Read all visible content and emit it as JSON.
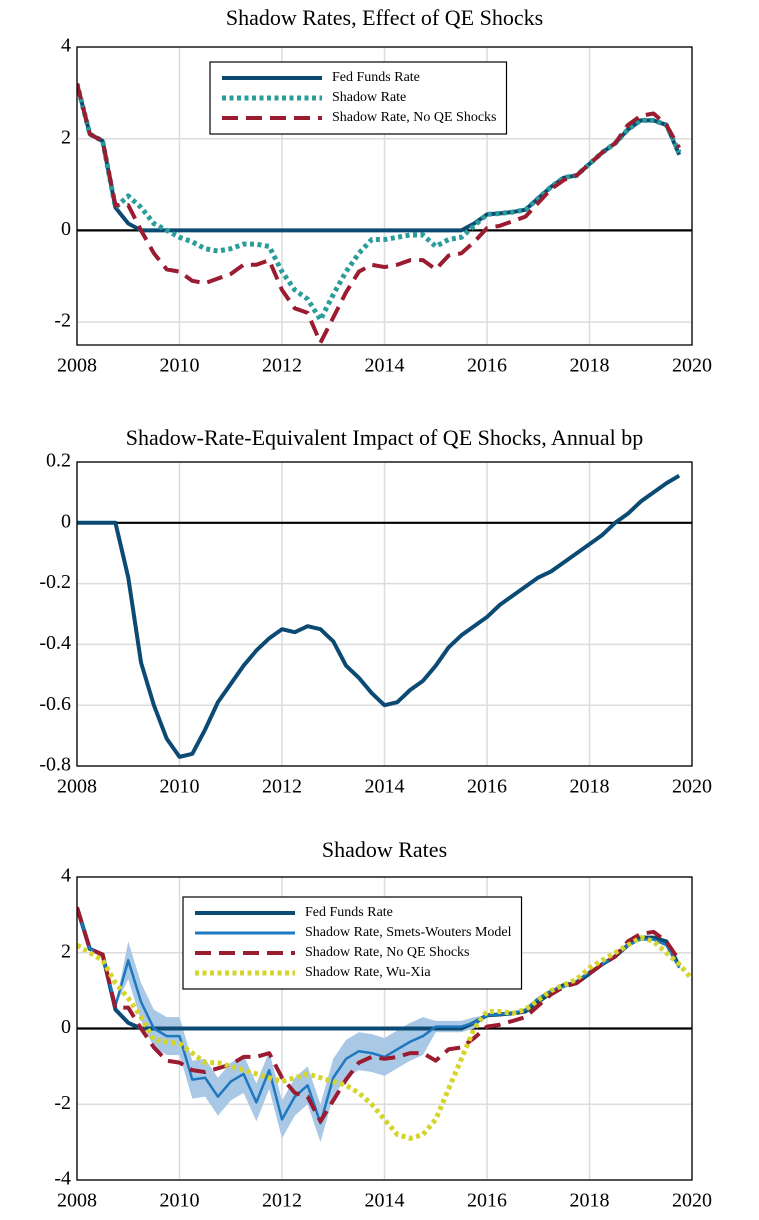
{
  "chart_data": [
    {
      "type": "line",
      "title": "Shadow Rates, Effect of QE Shocks",
      "x": [
        2008,
        2008.25,
        2008.5,
        2008.75,
        2009,
        2009.25,
        2009.5,
        2009.75,
        2010,
        2010.25,
        2010.5,
        2010.75,
        2011,
        2011.25,
        2011.5,
        2011.75,
        2012,
        2012.25,
        2012.5,
        2012.75,
        2013,
        2013.25,
        2013.5,
        2013.75,
        2014,
        2014.25,
        2014.5,
        2014.75,
        2015,
        2015.25,
        2015.5,
        2015.75,
        2016,
        2016.25,
        2016.5,
        2016.75,
        2017,
        2017.25,
        2017.5,
        2017.75,
        2018,
        2018.25,
        2018.5,
        2018.75,
        2019,
        2019.25,
        2019.5,
        2019.75
      ],
      "series": [
        {
          "name": "Fed Funds Rate",
          "color": "#0b4a73",
          "style": "solid",
          "values": [
            3.2,
            2.1,
            1.95,
            0.5,
            0.15,
            0,
            0,
            0,
            0,
            0,
            0,
            0,
            0,
            0,
            0,
            0,
            0,
            0,
            0,
            0,
            0,
            0,
            0,
            0,
            0,
            0,
            0,
            0,
            0,
            0,
            0,
            0.15,
            0.35,
            0.37,
            0.4,
            0.45,
            0.7,
            0.95,
            1.15,
            1.2,
            1.45,
            1.7,
            1.9,
            2.2,
            2.4,
            2.4,
            2.3,
            1.65
          ]
        },
        {
          "name": "Shadow Rate",
          "color": "#2a9d9a",
          "style": "dotted",
          "values": [
            3.2,
            2.1,
            1.95,
            0.5,
            0.75,
            0.5,
            0.15,
            0,
            -0.15,
            -0.25,
            -0.4,
            -0.45,
            -0.4,
            -0.3,
            -0.3,
            -0.35,
            -0.9,
            -1.3,
            -1.5,
            -1.95,
            -1.4,
            -0.9,
            -0.5,
            -0.2,
            -0.2,
            -0.15,
            -0.1,
            -0.1,
            -0.35,
            -0.2,
            -0.15,
            0.1,
            0.35,
            0.37,
            0.4,
            0.45,
            0.7,
            0.95,
            1.15,
            1.2,
            1.45,
            1.7,
            1.9,
            2.2,
            2.4,
            2.4,
            2.3,
            1.7
          ]
        },
        {
          "name": "Shadow Rate, No QE Shocks",
          "color": "#9b1b30",
          "style": "dashed",
          "values": [
            3.2,
            2.1,
            1.95,
            0.55,
            0.55,
            0,
            -0.5,
            -0.85,
            -0.9,
            -1.1,
            -1.15,
            -1.05,
            -0.95,
            -0.75,
            -0.75,
            -0.65,
            -1.3,
            -1.7,
            -1.8,
            -2.45,
            -1.9,
            -1.35,
            -0.9,
            -0.75,
            -0.8,
            -0.75,
            -0.65,
            -0.65,
            -0.85,
            -0.55,
            -0.5,
            -0.25,
            0.05,
            0.1,
            0.2,
            0.3,
            0.6,
            0.9,
            1.1,
            1.2,
            1.45,
            1.7,
            1.9,
            2.3,
            2.5,
            2.55,
            2.3,
            1.8
          ]
        }
      ],
      "xlim": [
        2008,
        2020
      ],
      "xticks": [
        2008,
        2010,
        2012,
        2014,
        2016,
        2018,
        2020
      ],
      "ylim": [
        -2.5,
        4
      ],
      "yticks": [
        -2,
        0,
        2,
        4
      ],
      "grid": true,
      "reference_line": 0,
      "legend": "upper center"
    },
    {
      "type": "line",
      "title": "Shadow-Rate-Equivalent Impact of QE Shocks, Annual bp",
      "x": [
        2008,
        2008.25,
        2008.5,
        2008.75,
        2009,
        2009.25,
        2009.5,
        2009.75,
        2010,
        2010.25,
        2010.5,
        2010.75,
        2011,
        2011.25,
        2011.5,
        2011.75,
        2012,
        2012.25,
        2012.5,
        2012.75,
        2013,
        2013.25,
        2013.5,
        2013.75,
        2014,
        2014.25,
        2014.5,
        2014.75,
        2015,
        2015.25,
        2015.5,
        2015.75,
        2016,
        2016.25,
        2016.5,
        2016.75,
        2017,
        2017.25,
        2017.5,
        2017.75,
        2018,
        2018.25,
        2018.5,
        2018.75,
        2019,
        2019.25,
        2019.5,
        2019.75
      ],
      "color": "#0b4a73",
      "values": [
        0,
        0,
        0,
        0,
        -0.18,
        -0.46,
        -0.6,
        -0.71,
        -0.77,
        -0.76,
        -0.68,
        -0.59,
        -0.53,
        -0.47,
        -0.42,
        -0.38,
        -0.35,
        -0.36,
        -0.34,
        -0.35,
        -0.39,
        -0.47,
        -0.51,
        -0.56,
        -0.6,
        -0.59,
        -0.55,
        -0.52,
        -0.47,
        -0.41,
        -0.37,
        -0.34,
        -0.31,
        -0.27,
        -0.24,
        -0.21,
        -0.18,
        -0.16,
        -0.13,
        -0.1,
        -0.07,
        -0.04,
        0,
        0.03,
        0.07,
        0.1,
        0.13,
        0.155
      ],
      "xlim": [
        2008,
        2020
      ],
      "xticks": [
        2008,
        2010,
        2012,
        2014,
        2016,
        2018,
        2020
      ],
      "ylim": [
        -0.8,
        0.2
      ],
      "yticks": [
        -0.8,
        -0.6,
        -0.4,
        -0.2,
        0,
        0.2
      ],
      "grid": true,
      "reference_line": 0
    },
    {
      "type": "line",
      "title": "Shadow Rates",
      "x": [
        2008,
        2008.25,
        2008.5,
        2008.75,
        2009,
        2009.25,
        2009.5,
        2009.75,
        2010,
        2010.25,
        2010.5,
        2010.75,
        2011,
        2011.25,
        2011.5,
        2011.75,
        2012,
        2012.25,
        2012.5,
        2012.75,
        2013,
        2013.25,
        2013.5,
        2013.75,
        2014,
        2014.25,
        2014.5,
        2014.75,
        2015,
        2015.25,
        2015.5,
        2015.75,
        2016,
        2016.25,
        2016.5,
        2016.75,
        2017,
        2017.25,
        2017.5,
        2017.75,
        2018,
        2018.25,
        2018.5,
        2018.75,
        2019,
        2019.25,
        2019.5,
        2019.75,
        2020
      ],
      "series": [
        {
          "name": "Fed Funds Rate",
          "color": "#0b4a73",
          "style": "solid",
          "values": [
            3.2,
            2.1,
            1.95,
            0.5,
            0.15,
            0,
            0,
            0,
            0,
            0,
            0,
            0,
            0,
            0,
            0,
            0,
            0,
            0,
            0,
            0,
            0,
            0,
            0,
            0,
            0,
            0,
            0,
            0,
            0,
            0,
            0,
            0.15,
            0.35,
            0.37,
            0.4,
            0.45,
            0.7,
            0.95,
            1.15,
            1.2,
            1.45,
            1.7,
            1.9,
            2.2,
            2.4,
            2.4,
            2.3,
            1.65,
            null
          ]
        },
        {
          "name": "Shadow Rate, Smets-Wouters Model",
          "color": "#1e78c0",
          "style": "solid",
          "band_color": "#a9c8e6",
          "values": [
            3.2,
            2.1,
            1.95,
            0.6,
            1.8,
            0.7,
            0,
            -0.2,
            -0.2,
            -1.35,
            -1.3,
            -1.8,
            -1.4,
            -1.2,
            -1.95,
            -1.1,
            -2.4,
            -1.8,
            -1.5,
            -2.5,
            -1.3,
            -0.8,
            -0.6,
            -0.65,
            -0.75,
            -0.55,
            -0.35,
            -0.2,
            0.05,
            0.05,
            0.05,
            0.15,
            0.35,
            0.37,
            0.4,
            0.5,
            0.8,
            1,
            1.1,
            1.25,
            1.5,
            1.7,
            1.9,
            2.2,
            2.35,
            2.35,
            2.2,
            1.6,
            null
          ],
          "upper": [
            3.2,
            2.1,
            1.95,
            0.6,
            2.3,
            1.2,
            0.5,
            0.3,
            0.3,
            -0.85,
            -0.8,
            -1.3,
            -0.9,
            -0.7,
            -1.45,
            -0.6,
            -1.9,
            -1.3,
            -1,
            -2,
            -0.8,
            -0.3,
            -0.1,
            -0.15,
            -0.25,
            -0.05,
            0.15,
            0.3,
            0.2,
            0.2,
            0.2,
            0.3,
            0.35,
            0.37,
            0.4,
            0.5,
            0.8,
            1,
            1.1,
            1.25,
            1.5,
            1.7,
            1.9,
            2.2,
            2.35,
            2.35,
            2.2,
            1.6,
            null
          ],
          "lower": [
            3.2,
            2.1,
            1.95,
            0.6,
            1.3,
            0.2,
            -0.5,
            -0.7,
            -0.7,
            -1.85,
            -1.8,
            -2.3,
            -1.9,
            -1.7,
            -2.45,
            -1.6,
            -2.9,
            -2.3,
            -2,
            -3,
            -1.8,
            -1.3,
            -1.1,
            -1.15,
            -1.25,
            -1.05,
            -0.85,
            -0.7,
            -0.1,
            -0.1,
            -0.1,
            0,
            0.35,
            0.37,
            0.4,
            0.5,
            0.8,
            1,
            1.1,
            1.25,
            1.5,
            1.7,
            1.9,
            2.2,
            2.35,
            2.35,
            2.2,
            1.6,
            null
          ]
        },
        {
          "name": "Shadow Rate, No QE Shocks",
          "color": "#9b1b30",
          "style": "dashed",
          "values": [
            3.2,
            2.1,
            1.95,
            0.55,
            0.55,
            0,
            -0.5,
            -0.85,
            -0.9,
            -1.1,
            -1.15,
            -1.05,
            -0.95,
            -0.75,
            -0.75,
            -0.65,
            -1.3,
            -1.7,
            -1.8,
            -2.45,
            -1.9,
            -1.35,
            -0.9,
            -0.75,
            -0.8,
            -0.75,
            -0.65,
            -0.65,
            -0.85,
            -0.55,
            -0.5,
            -0.25,
            0.05,
            0.1,
            0.2,
            0.3,
            0.6,
            0.9,
            1.1,
            1.2,
            1.45,
            1.7,
            1.9,
            2.3,
            2.5,
            2.55,
            2.3,
            1.8,
            null
          ]
        },
        {
          "name": "Shadow Rate, Wu-Xia",
          "color": "#d4d42a",
          "style": "dotted",
          "values": [
            2.2,
            2,
            1.8,
            1.2,
            0.8,
            0.3,
            -0.3,
            -0.35,
            -0.4,
            -0.65,
            -0.9,
            -0.9,
            -1,
            -1.1,
            -1.2,
            -1.3,
            -1.4,
            -1.3,
            -1.2,
            -1.3,
            -1.4,
            -1.5,
            -1.7,
            -2,
            -2.4,
            -2.8,
            -2.9,
            -2.8,
            -2.4,
            -1.6,
            -0.8,
            0,
            0.45,
            0.45,
            0.4,
            0.5,
            0.75,
            1,
            1.15,
            1.3,
            1.6,
            1.8,
            2,
            2.2,
            2.4,
            2.3,
            2,
            1.7,
            1.3
          ]
        }
      ],
      "xlim": [
        2008,
        2020
      ],
      "xticks": [
        2008,
        2010,
        2012,
        2014,
        2016,
        2018,
        2020
      ],
      "ylim": [
        -4,
        4
      ],
      "yticks": [
        -4,
        -2,
        0,
        2,
        4
      ],
      "grid": true,
      "reference_line": 0,
      "legend": "upper center"
    }
  ]
}
